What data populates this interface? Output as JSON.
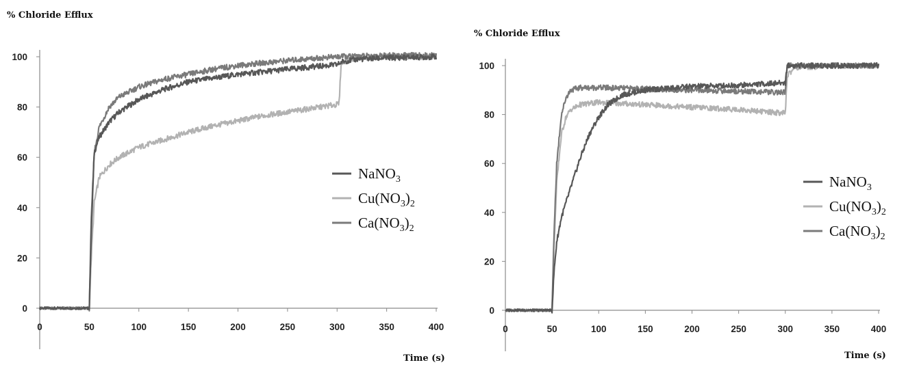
{
  "chart_data": [
    {
      "type": "line",
      "title": "",
      "ylabel": "% Chloride Efflux",
      "xlabel": "Time (s)",
      "xlim": [
        0,
        400
      ],
      "ylim": [
        0,
        100
      ],
      "xticks": [
        0,
        50,
        100,
        150,
        200,
        250,
        300,
        350,
        400
      ],
      "yticks": [
        0,
        20,
        40,
        60,
        80,
        100
      ],
      "grid": false,
      "legend_position": "center-right",
      "series": [
        {
          "label": {
            "base": "NaNO",
            "sub": "3",
            "tail": "",
            "sub2": ""
          },
          "color": "#575757",
          "points": [
            [
              0,
              0
            ],
            [
              50,
              0
            ],
            [
              52,
              30
            ],
            [
              55,
              62
            ],
            [
              60,
              68
            ],
            [
              70,
              74
            ],
            [
              80,
              78
            ],
            [
              100,
              83
            ],
            [
              125,
              87
            ],
            [
              150,
              90
            ],
            [
              175,
              91.5
            ],
            [
              200,
              93
            ],
            [
              225,
              94
            ],
            [
              250,
              95
            ],
            [
              275,
              96
            ],
            [
              300,
              96.8
            ],
            [
              305,
              98
            ],
            [
              320,
              99
            ],
            [
              350,
              99.5
            ],
            [
              400,
              100
            ]
          ]
        },
        {
          "label": {
            "base": "Cu(NO",
            "sub": "3",
            "tail": ")",
            "sub2": "2"
          },
          "color": "#b2b2b2",
          "points": [
            [
              0,
              0
            ],
            [
              50,
              0
            ],
            [
              52,
              20
            ],
            [
              55,
              42
            ],
            [
              60,
              52
            ],
            [
              70,
              57
            ],
            [
              80,
              60
            ],
            [
              100,
              64
            ],
            [
              125,
              67
            ],
            [
              150,
              70
            ],
            [
              175,
              72.5
            ],
            [
              200,
              74.5
            ],
            [
              225,
              76.5
            ],
            [
              250,
              78
            ],
            [
              275,
              79.5
            ],
            [
              300,
              81
            ],
            [
              302,
              81.5
            ],
            [
              304,
              97
            ],
            [
              310,
              99
            ],
            [
              350,
              100
            ],
            [
              400,
              100
            ]
          ]
        },
        {
          "label": {
            "base": "Ca(NO",
            "sub": "3",
            "tail": ")",
            "sub2": "2"
          },
          "color": "#7a7a7a",
          "points": [
            [
              0,
              0
            ],
            [
              50,
              0
            ],
            [
              52,
              35
            ],
            [
              55,
              62
            ],
            [
              60,
              72
            ],
            [
              70,
              80
            ],
            [
              80,
              84
            ],
            [
              100,
              88
            ],
            [
              125,
              91
            ],
            [
              150,
              93
            ],
            [
              175,
              95
            ],
            [
              200,
              96.5
            ],
            [
              225,
              97.5
            ],
            [
              250,
              98.5
            ],
            [
              275,
              99.3
            ],
            [
              300,
              100
            ],
            [
              350,
              100.5
            ],
            [
              400,
              100.5
            ]
          ]
        }
      ]
    },
    {
      "type": "line",
      "title": "",
      "ylabel": "% Chloride Efflux",
      "xlabel": "Time (s)",
      "xlim": [
        0,
        400
      ],
      "ylim": [
        0,
        100
      ],
      "xticks": [
        0,
        50,
        100,
        150,
        200,
        250,
        300,
        350,
        400
      ],
      "yticks": [
        0,
        20,
        40,
        60,
        80,
        100
      ],
      "grid": false,
      "legend_position": "center-right",
      "series": [
        {
          "label": {
            "base": "NaNO",
            "sub": "3",
            "tail": "",
            "sub2": ""
          },
          "color": "#575757",
          "points": [
            [
              0,
              0
            ],
            [
              50,
              0
            ],
            [
              52,
              15
            ],
            [
              55,
              28
            ],
            [
              60,
              38
            ],
            [
              70,
              50
            ],
            [
              80,
              62
            ],
            [
              90,
              72
            ],
            [
              100,
              79
            ],
            [
              110,
              84
            ],
            [
              125,
              88
            ],
            [
              150,
              90
            ],
            [
              200,
              91.5
            ],
            [
              250,
              92
            ],
            [
              300,
              93
            ],
            [
              302,
              100
            ],
            [
              350,
              100
            ],
            [
              400,
              100
            ]
          ]
        },
        {
          "label": {
            "base": "Cu(NO",
            "sub": "3",
            "tail": ")",
            "sub2": "2"
          },
          "color": "#b2b2b2",
          "points": [
            [
              0,
              0
            ],
            [
              50,
              0
            ],
            [
              52,
              25
            ],
            [
              55,
              52
            ],
            [
              60,
              72
            ],
            [
              65,
              79
            ],
            [
              70,
              82
            ],
            [
              80,
              84
            ],
            [
              100,
              85
            ],
            [
              125,
              84.5
            ],
            [
              150,
              84
            ],
            [
              200,
              83
            ],
            [
              250,
              82
            ],
            [
              300,
              80.5
            ],
            [
              302,
              96
            ],
            [
              310,
              99
            ],
            [
              350,
              100
            ],
            [
              400,
              100
            ]
          ]
        },
        {
          "label": {
            "base": "Ca(NO",
            "sub": "3",
            "tail": ")",
            "sub2": "2"
          },
          "color": "#7a7a7a",
          "points": [
            [
              0,
              0
            ],
            [
              50,
              0
            ],
            [
              52,
              30
            ],
            [
              55,
              60
            ],
            [
              60,
              80
            ],
            [
              65,
              87
            ],
            [
              70,
              90
            ],
            [
              80,
              91
            ],
            [
              100,
              91
            ],
            [
              150,
              90.5
            ],
            [
              200,
              90
            ],
            [
              250,
              89.5
            ],
            [
              300,
              89
            ],
            [
              302,
              100
            ],
            [
              350,
              100
            ],
            [
              400,
              100
            ]
          ]
        }
      ]
    }
  ]
}
